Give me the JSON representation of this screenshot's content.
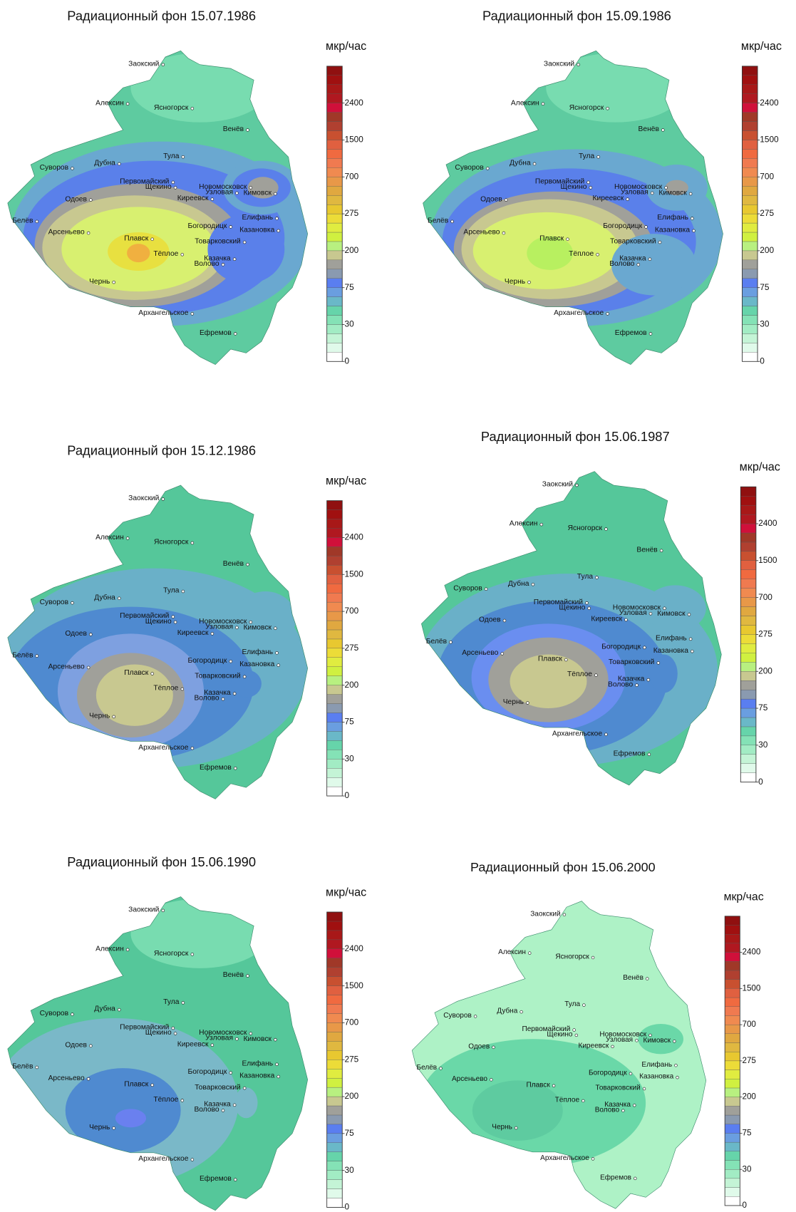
{
  "maps": [
    {
      "title": "Радиационный фон 15.07.1986"
    },
    {
      "title": "Радиационный фон 15.09.1986"
    },
    {
      "title": "Радиационный фон 15.12.1986"
    },
    {
      "title": "Радиационный фон 15.06.1987"
    },
    {
      "title": "Радиационный фон 15.06.1990"
    },
    {
      "title": "Радиационный фон 15.06.2000"
    }
  ],
  "unit": "мкр/час",
  "scale_ticks": [
    0,
    30,
    75,
    200,
    275,
    700,
    1500,
    2400
  ],
  "cities": [
    "Заокский",
    "Алексин",
    "Ясногорск",
    "Венёв",
    "Тула",
    "Суворов",
    "Дубна",
    "Первомайский",
    "Щекино",
    "Новомосковск",
    "Узловая",
    "Кимовск",
    "Киреевск",
    "Одоев",
    "Белёв",
    "Елифань",
    "Арсеньево",
    "Плавск",
    "Богородицк",
    "Казановка",
    "Товарковский",
    "Тёплое",
    "Казачка",
    "Волово",
    "Чернь",
    "Архангельское",
    "Ефремов"
  ]
}
